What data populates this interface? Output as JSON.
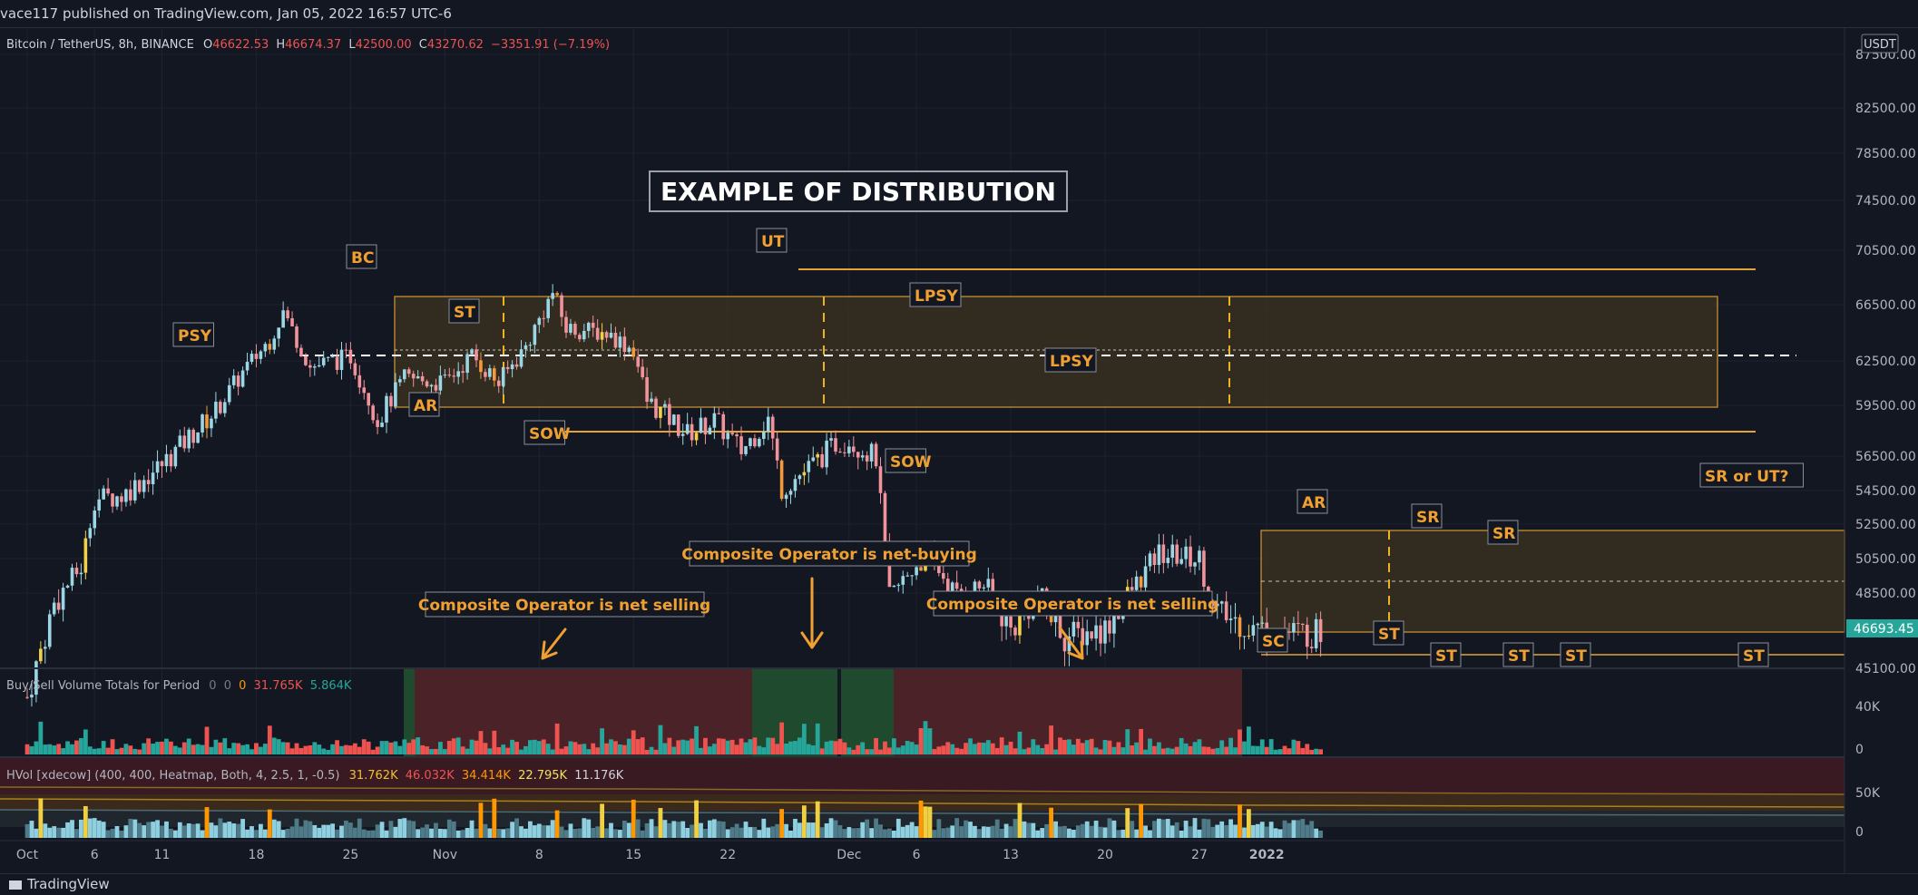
{
  "header": {
    "published": "vace117 published on TradingView.com, Jan 05, 2022 16:57 UTC-6"
  },
  "legend": {
    "symbol": "Bitcoin / TetherUS, 8h, BINANCE",
    "open_label": "O",
    "open": "46622.53",
    "high_label": "H",
    "high": "46674.37",
    "low_label": "L",
    "low": "42500.00",
    "close_label": "C",
    "close": "43270.62",
    "change": "−3351.91 (−7.19%)"
  },
  "currency_badge": "USDT",
  "price_tag": "46693.45",
  "title_box": "EXAMPLE OF DISTRIBUTION",
  "annotations": {
    "psy": "PSY",
    "bc": "BC",
    "st": "ST",
    "ar": "AR",
    "sow1": "SOW",
    "ut": "UT",
    "lpsy1": "LPSY",
    "lpsy2": "LPSY",
    "sow2": "SOW",
    "ar2": "AR",
    "sc": "SC",
    "sr1": "SR",
    "sr2": "SR",
    "sr_ut": "SR or UT?",
    "st2": "ST",
    "st3": "ST",
    "st4": "ST",
    "st5": "ST",
    "st6": "ST",
    "co_sell1": "Composite Operator is net selling",
    "co_buy": "Composite Operator is net-buying",
    "co_sell2": "Composite Operator is net selling"
  },
  "volume_panel": {
    "label": "Buy/Sell Volume Totals for Period",
    "v1": "0",
    "v2": "0",
    "v3": "0",
    "v4": "31.765K",
    "v5": "5.864K",
    "axis": [
      "40K",
      "0"
    ]
  },
  "hvol_panel": {
    "label": "HVol [xdecow] (400, 400, Heatmap, Both, 4, 2.5, 1, -0.5)",
    "v1": "31.762K",
    "v2": "46.032K",
    "v3": "34.414K",
    "v4": "22.795K",
    "v5": "11.176K",
    "axis": [
      "50K",
      "0"
    ]
  },
  "footer": {
    "brand": "TradingView"
  },
  "colors": {
    "background": "#131722",
    "bull": "#9bd6e4",
    "bear": "#f1939a",
    "accent": "#f0a030",
    "buy": "#26a69a",
    "sell": "#ef5350"
  },
  "chart_data": {
    "type": "candlestick",
    "timeframe": "8h",
    "ylim": [
      44300,
      87000
    ],
    "price_ticks": [
      "45100.00",
      "48500.00",
      "50500.00",
      "52500.00",
      "54500.00",
      "56500.00",
      "59500.00",
      "62500.00",
      "66500.00",
      "70500.00",
      "74500.00",
      "78500.00",
      "82500.00",
      "87500.00"
    ],
    "x_ticks": [
      "Oct",
      "6",
      "11",
      "18",
      "25",
      "Nov",
      "8",
      "15",
      "22",
      "Dec",
      "6",
      "13",
      "20",
      "27",
      "2022"
    ],
    "series": [
      {
        "x": "2021-10-01",
        "y": 43800
      },
      {
        "x": "2021-10-03",
        "y": 48000
      },
      {
        "x": "2021-10-05",
        "y": 50000
      },
      {
        "x": "2021-10-06",
        "y": 54000
      },
      {
        "x": "2021-10-08",
        "y": 54200
      },
      {
        "x": "2021-10-11",
        "y": 56000
      },
      {
        "x": "2021-10-13",
        "y": 57600
      },
      {
        "x": "2021-10-15",
        "y": 59200
      },
      {
        "x": "2021-10-17",
        "y": 61700
      },
      {
        "x": "2021-10-19",
        "y": 64000
      },
      {
        "x": "2021-10-20",
        "y": 66000
      },
      {
        "x": "2021-10-22",
        "y": 62100
      },
      {
        "x": "2021-10-25",
        "y": 62800
      },
      {
        "x": "2021-10-27",
        "y": 58600
      },
      {
        "x": "2021-10-29",
        "y": 61300
      },
      {
        "x": "2021-11-01",
        "y": 61000
      },
      {
        "x": "2021-11-03",
        "y": 62900
      },
      {
        "x": "2021-11-05",
        "y": 61000
      },
      {
        "x": "2021-11-07",
        "y": 63500
      },
      {
        "x": "2021-11-09",
        "y": 67400
      },
      {
        "x": "2021-11-10",
        "y": 64800
      },
      {
        "x": "2021-11-13",
        "y": 64500
      },
      {
        "x": "2021-11-15",
        "y": 63300
      },
      {
        "x": "2021-11-16",
        "y": 59800
      },
      {
        "x": "2021-11-19",
        "y": 57800
      },
      {
        "x": "2021-11-21",
        "y": 58600
      },
      {
        "x": "2021-11-23",
        "y": 56800
      },
      {
        "x": "2021-11-25",
        "y": 58700
      },
      {
        "x": "2021-11-26",
        "y": 54600
      },
      {
        "x": "2021-11-28",
        "y": 55800
      },
      {
        "x": "2021-11-30",
        "y": 57200
      },
      {
        "x": "2021-12-01",
        "y": 57400
      },
      {
        "x": "2021-12-03",
        "y": 56400
      },
      {
        "x": "2021-12-04",
        "y": 48200
      },
      {
        "x": "2021-12-06",
        "y": 50200
      },
      {
        "x": "2021-12-07",
        "y": 50600
      },
      {
        "x": "2021-12-09",
        "y": 48300
      },
      {
        "x": "2021-12-11",
        "y": 49000
      },
      {
        "x": "2021-12-13",
        "y": 46800
      },
      {
        "x": "2021-12-15",
        "y": 48400
      },
      {
        "x": "2021-12-17",
        "y": 46500
      },
      {
        "x": "2021-12-20",
        "y": 46900
      },
      {
        "x": "2021-12-22",
        "y": 48700
      },
      {
        "x": "2021-12-24",
        "y": 50800
      },
      {
        "x": "2021-12-27",
        "y": 50500
      },
      {
        "x": "2021-12-28",
        "y": 47700
      },
      {
        "x": "2021-12-31",
        "y": 46900
      },
      {
        "x": "2022-01-03",
        "y": 46700
      },
      {
        "x": "2022-01-05",
        "y": 46693
      }
    ]
  }
}
